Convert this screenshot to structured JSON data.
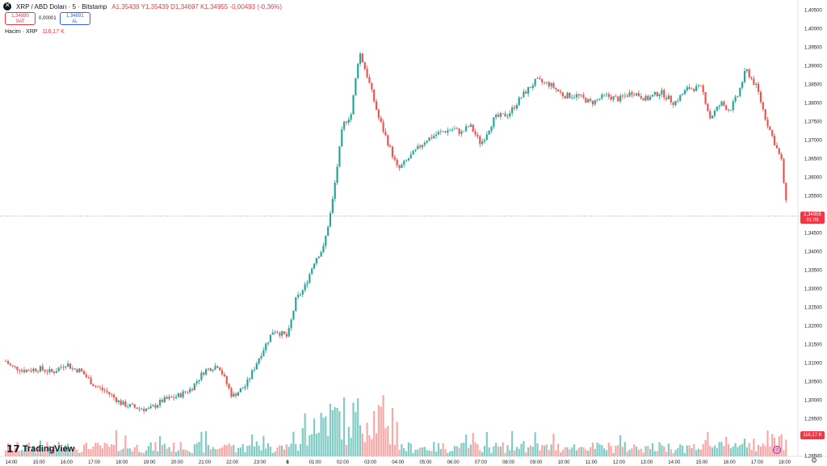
{
  "header": {
    "symbol": "XRP / ABD Doları · 5 · Bitstamp",
    "ohlc": "A1,35439 Y1,35439 D1,34697 K1,34955 -0,00493 (-0,36%)"
  },
  "trade": {
    "sell_price": "1,34890",
    "sell_label": "SAT",
    "spread": "0,00001",
    "buy_price": "1,34891",
    "buy_label": "AL"
  },
  "volume_legend": {
    "label": "Hacim · XRP",
    "value": "116,17 K"
  },
  "badges": {
    "price": "1,34955",
    "countdown": "01:09",
    "volume": "116,17 K"
  },
  "branding": {
    "name": "TradingView",
    "icon": "tradingview-logo-icon"
  },
  "icons": {
    "settings": "gear-icon",
    "timezone": "clock-icon"
  },
  "colors": {
    "up": "#26a69a",
    "down": "#ef5350",
    "vol_up": "#80cbc4",
    "vol_down": "#f7a9a7",
    "price_line": "#f23645"
  },
  "chart_data": {
    "type": "candlestick",
    "y_ticks": [
      "1,40500",
      "1,40000",
      "1,39500",
      "1,39000",
      "1,38500",
      "1,38000",
      "1,37500",
      "1,37000",
      "1,36500",
      "1,36000",
      "1,35500",
      "1,35000",
      "1,34500",
      "1,34000",
      "1,33500",
      "1,33000",
      "1,32500",
      "1,32000",
      "1,31500",
      "1,31000",
      "1,30500",
      "1,30000",
      "1,29500",
      "1,29000",
      "1,28500"
    ],
    "ylim": [
      1.285,
      1.405
    ],
    "x_ticks": [
      "14:00",
      "15:00",
      "16:00",
      "17:00",
      "18:00",
      "19:00",
      "20:00",
      "21:00",
      "22:00",
      "23:00",
      "8",
      "01:00",
      "02:00",
      "03:00",
      "04:00",
      "05:00",
      "06:00",
      "07:00",
      "08:00",
      "09:00",
      "10:00",
      "11:00",
      "12:00",
      "13:00",
      "14:00",
      "15:00",
      "16:00",
      "17:00",
      "18:00"
    ],
    "last_price": 1.34955,
    "close_path": [
      [
        13.8,
        1.3105
      ],
      [
        14.0,
        1.309
      ],
      [
        14.5,
        1.308
      ],
      [
        15.0,
        1.3085
      ],
      [
        15.5,
        1.3075
      ],
      [
        16.0,
        1.31
      ],
      [
        16.2,
        1.3085
      ],
      [
        16.5,
        1.308
      ],
      [
        17.0,
        1.304
      ],
      [
        17.5,
        1.302
      ],
      [
        18.0,
        1.299
      ],
      [
        18.5,
        1.298
      ],
      [
        19.0,
        1.2975
      ],
      [
        19.5,
        1.3
      ],
      [
        20.0,
        1.301
      ],
      [
        20.5,
        1.303
      ],
      [
        21.0,
        1.308
      ],
      [
        21.5,
        1.3095
      ],
      [
        22.0,
        1.301
      ],
      [
        22.5,
        1.304
      ],
      [
        23.0,
        1.312
      ],
      [
        23.5,
        1.319
      ],
      [
        24.0,
        1.317
      ],
      [
        24.3,
        1.327
      ],
      [
        24.6,
        1.33
      ],
      [
        25.0,
        1.338
      ],
      [
        25.3,
        1.341
      ],
      [
        25.6,
        1.352
      ],
      [
        26.0,
        1.374
      ],
      [
        26.3,
        1.377
      ],
      [
        26.6,
        1.394
      ],
      [
        26.9,
        1.387
      ],
      [
        27.3,
        1.376
      ],
      [
        27.7,
        1.368
      ],
      [
        28.0,
        1.362
      ],
      [
        28.5,
        1.366
      ],
      [
        29.0,
        1.37
      ],
      [
        29.5,
        1.372
      ],
      [
        30.0,
        1.373
      ],
      [
        30.3,
        1.372
      ],
      [
        30.6,
        1.374
      ],
      [
        31.0,
        1.369
      ],
      [
        31.5,
        1.376
      ],
      [
        32.0,
        1.377
      ],
      [
        32.5,
        1.382
      ],
      [
        33.0,
        1.386
      ],
      [
        33.5,
        1.385
      ],
      [
        34.0,
        1.382
      ],
      [
        34.5,
        1.382
      ],
      [
        35.0,
        1.38
      ],
      [
        35.5,
        1.382
      ],
      [
        36.0,
        1.381
      ],
      [
        36.5,
        1.383
      ],
      [
        37.0,
        1.381
      ],
      [
        37.5,
        1.383
      ],
      [
        38.0,
        1.38
      ],
      [
        38.5,
        1.384
      ],
      [
        39.0,
        1.384
      ],
      [
        39.3,
        1.376
      ],
      [
        39.7,
        1.38
      ],
      [
        40.0,
        1.378
      ],
      [
        40.3,
        1.382
      ],
      [
        40.6,
        1.389
      ],
      [
        41.0,
        1.384
      ],
      [
        41.3,
        1.376
      ],
      [
        41.6,
        1.37
      ],
      [
        41.9,
        1.364
      ],
      [
        42.0,
        1.356
      ],
      [
        42.1,
        1.35
      ]
    ],
    "volume_note": "volume histogram shown under price panel"
  }
}
